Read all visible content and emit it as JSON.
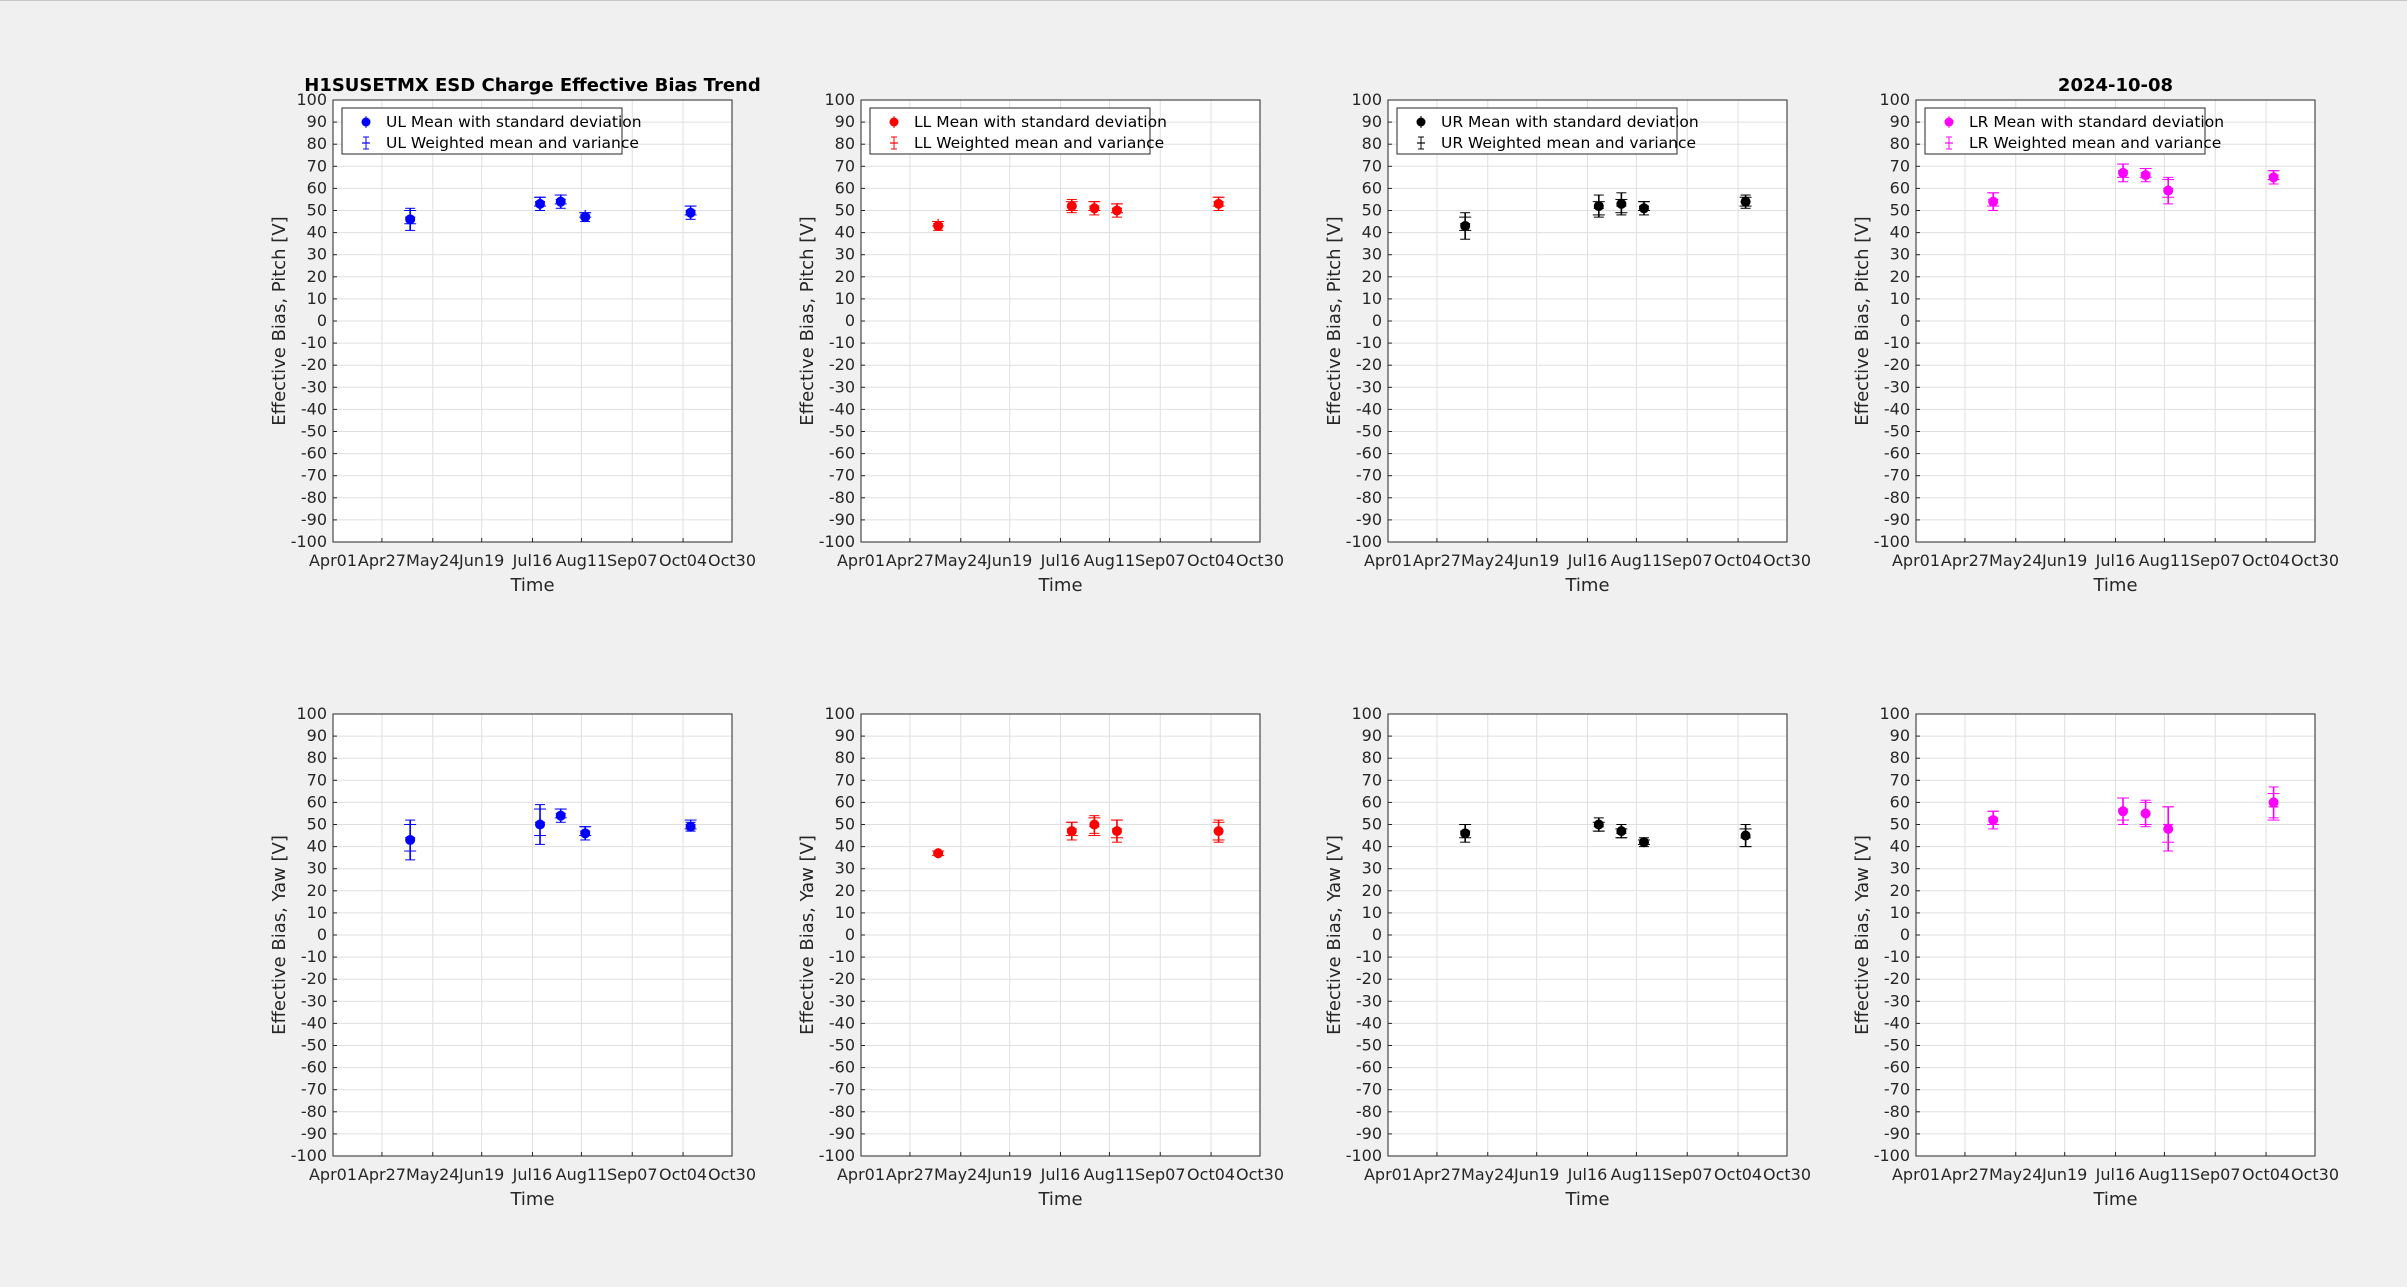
{
  "figure": {
    "title": "H1SUSETMX ESD Charge Effective Bias Trend",
    "date": "2024-10-08"
  },
  "chart_data": [
    {
      "type": "scatter",
      "quadrant": "UL",
      "color": "#0000ff",
      "xlabel": "Time",
      "ylabel": "Effective Bias, Pitch [V]",
      "ylim": [
        -100,
        100
      ],
      "y_ticks": [
        -100,
        -90,
        -80,
        -70,
        -60,
        -50,
        -40,
        -30,
        -20,
        -10,
        0,
        10,
        20,
        30,
        40,
        50,
        60,
        70,
        80,
        90,
        100
      ],
      "x_ticks": [
        "Apr01",
        "Apr27",
        "May24",
        "Jun19",
        "Jul16",
        "Aug11",
        "Sep07",
        "Oct04",
        "Oct30"
      ],
      "grid": true,
      "legend_position": "top-left",
      "series": [
        {
          "name": "UL Mean with standard deviation",
          "marker": "filled-circle",
          "x": [
            "May12",
            "Jul20",
            "Jul31",
            "Aug13",
            "Oct08"
          ],
          "y": [
            46,
            53,
            54,
            47,
            49
          ],
          "err": [
            5,
            3,
            3,
            2,
            3
          ]
        },
        {
          "name": "UL Weighted mean and variance",
          "marker": "plus",
          "x": [
            "May12",
            "Jul20",
            "Jul31",
            "Aug13",
            "Oct08"
          ],
          "y": [
            47,
            54,
            55,
            48,
            50
          ],
          "err": [
            3,
            2,
            2,
            1,
            2
          ]
        }
      ]
    },
    {
      "type": "scatter",
      "quadrant": "LL",
      "color": "#ff0000",
      "xlabel": "Time",
      "ylabel": "Effective Bias, Pitch [V]",
      "ylim": [
        -100,
        100
      ],
      "y_ticks": [
        -100,
        -90,
        -80,
        -70,
        -60,
        -50,
        -40,
        -30,
        -20,
        -10,
        0,
        10,
        20,
        30,
        40,
        50,
        60,
        70,
        80,
        90,
        100
      ],
      "x_ticks": [
        "Apr01",
        "Apr27",
        "May24",
        "Jun19",
        "Jul16",
        "Aug11",
        "Sep07",
        "Oct04",
        "Oct30"
      ],
      "grid": true,
      "legend_position": "top-left",
      "series": [
        {
          "name": "LL Mean with standard deviation",
          "marker": "filled-circle",
          "x": [
            "May12",
            "Jul22",
            "Aug03",
            "Aug15",
            "Oct08"
          ],
          "y": [
            43,
            52,
            51,
            50,
            53
          ],
          "err": [
            2,
            3,
            3,
            3,
            3
          ]
        },
        {
          "name": "LL Weighted mean and variance",
          "marker": "plus",
          "x": [
            "May12",
            "Jul22",
            "Aug03",
            "Aug15",
            "Oct08"
          ],
          "y": [
            44,
            52,
            52,
            51,
            54
          ],
          "err": [
            1,
            2,
            2,
            2,
            2
          ]
        }
      ]
    },
    {
      "type": "scatter",
      "quadrant": "UR",
      "color": "#000000",
      "xlabel": "Time",
      "ylabel": "Effective Bias, Pitch [V]",
      "ylim": [
        -100,
        100
      ],
      "y_ticks": [
        -100,
        -90,
        -80,
        -70,
        -60,
        -50,
        -40,
        -30,
        -20,
        -10,
        0,
        10,
        20,
        30,
        40,
        50,
        60,
        70,
        80,
        90,
        100
      ],
      "x_ticks": [
        "Apr01",
        "Apr27",
        "May24",
        "Jun19",
        "Jul16",
        "Aug11",
        "Sep07",
        "Oct04",
        "Oct30"
      ],
      "grid": true,
      "legend_position": "top-left",
      "series": [
        {
          "name": "UR Mean with standard deviation",
          "marker": "filled-circle",
          "x": [
            "May12",
            "Jul22",
            "Aug03",
            "Aug15",
            "Oct08"
          ],
          "y": [
            43,
            52,
            53,
            51,
            54
          ],
          "err": [
            6,
            5,
            5,
            3,
            3
          ]
        },
        {
          "name": "UR Weighted mean and variance",
          "marker": "plus",
          "x": [
            "May12",
            "Jul22",
            "Aug03",
            "Aug15",
            "Oct08"
          ],
          "y": [
            44,
            51,
            52,
            52,
            54
          ],
          "err": [
            3,
            3,
            3,
            2,
            2
          ]
        }
      ]
    },
    {
      "type": "scatter",
      "quadrant": "LR",
      "color": "#ff00ff",
      "xlabel": "Time",
      "ylabel": "Effective Bias, Pitch [V]",
      "ylim": [
        -100,
        100
      ],
      "y_ticks": [
        -100,
        -90,
        -80,
        -70,
        -60,
        -50,
        -40,
        -30,
        -20,
        -10,
        0,
        10,
        20,
        30,
        40,
        50,
        60,
        70,
        80,
        90,
        100
      ],
      "x_ticks": [
        "Apr01",
        "Apr27",
        "May24",
        "Jun19",
        "Jul16",
        "Aug11",
        "Sep07",
        "Oct04",
        "Oct30"
      ],
      "grid": true,
      "legend_position": "top-left",
      "series": [
        {
          "name": "LR Mean with standard deviation",
          "marker": "filled-circle",
          "x": [
            "May12",
            "Jul20",
            "Aug01",
            "Aug13",
            "Oct08"
          ],
          "y": [
            54,
            67,
            66,
            59,
            65
          ],
          "err": [
            4,
            4,
            3,
            6,
            3
          ]
        },
        {
          "name": "LR Weighted mean and variance",
          "marker": "plus",
          "x": [
            "May12",
            "Jul20",
            "Aug01",
            "Aug13",
            "Oct08"
          ],
          "y": [
            55,
            68,
            67,
            60,
            66
          ],
          "err": [
            3,
            3,
            2,
            4,
            2
          ]
        }
      ]
    },
    {
      "type": "scatter",
      "quadrant": "UL",
      "color": "#0000ff",
      "xlabel": "Time",
      "ylabel": "Effective Bias, Yaw [V]",
      "ylim": [
        -100,
        100
      ],
      "y_ticks": [
        -100,
        -90,
        -80,
        -70,
        -60,
        -50,
        -40,
        -30,
        -20,
        -10,
        0,
        10,
        20,
        30,
        40,
        50,
        60,
        70,
        80,
        90,
        100
      ],
      "x_ticks": [
        "Apr01",
        "Apr27",
        "May24",
        "Jun19",
        "Jul16",
        "Aug11",
        "Sep07",
        "Oct04",
        "Oct30"
      ],
      "grid": true,
      "series": [
        {
          "name": "UL Mean with standard deviation",
          "marker": "filled-circle",
          "x": [
            "May12",
            "Jul20",
            "Jul31",
            "Aug13",
            "Oct08"
          ],
          "y": [
            43,
            50,
            54,
            46,
            49
          ],
          "err": [
            9,
            9,
            3,
            3,
            2
          ]
        },
        {
          "name": "UL Weighted mean and variance",
          "marker": "plus",
          "x": [
            "May12",
            "Jul20",
            "Jul31",
            "Aug13",
            "Oct08"
          ],
          "y": [
            44,
            51,
            55,
            47,
            50
          ],
          "err": [
            6,
            6,
            2,
            2,
            2
          ]
        }
      ]
    },
    {
      "type": "scatter",
      "quadrant": "LL",
      "color": "#ff0000",
      "xlabel": "Time",
      "ylabel": "Effective Bias, Yaw [V]",
      "ylim": [
        -100,
        100
      ],
      "y_ticks": [
        -100,
        -90,
        -80,
        -70,
        -60,
        -50,
        -40,
        -30,
        -20,
        -10,
        0,
        10,
        20,
        30,
        40,
        50,
        60,
        70,
        80,
        90,
        100
      ],
      "x_ticks": [
        "Apr01",
        "Apr27",
        "May24",
        "Jun19",
        "Jul16",
        "Aug11",
        "Sep07",
        "Oct04",
        "Oct30"
      ],
      "grid": true,
      "series": [
        {
          "name": "LL Mean with standard deviation",
          "marker": "filled-circle",
          "x": [
            "May12",
            "Jul22",
            "Aug03",
            "Aug15",
            "Oct08"
          ],
          "y": [
            37,
            47,
            50,
            47,
            47
          ],
          "err": [
            1,
            4,
            4,
            5,
            5
          ]
        },
        {
          "name": "LL Weighted mean and variance",
          "marker": "plus",
          "x": [
            "May12",
            "Jul22",
            "Aug03",
            "Aug15",
            "Oct08"
          ],
          "y": [
            37,
            48,
            49,
            48,
            47
          ],
          "err": [
            1,
            3,
            4,
            4,
            4
          ]
        }
      ]
    },
    {
      "type": "scatter",
      "quadrant": "UR",
      "color": "#000000",
      "xlabel": "Time",
      "ylabel": "Effective Bias, Yaw [V]",
      "ylim": [
        -100,
        100
      ],
      "y_ticks": [
        -100,
        -90,
        -80,
        -70,
        -60,
        -50,
        -40,
        -30,
        -20,
        -10,
        0,
        10,
        20,
        30,
        40,
        50,
        60,
        70,
        80,
        90,
        100
      ],
      "x_ticks": [
        "Apr01",
        "Apr27",
        "May24",
        "Jun19",
        "Jul16",
        "Aug11",
        "Sep07",
        "Oct04",
        "Oct30"
      ],
      "grid": true,
      "series": [
        {
          "name": "UR Mean with standard deviation",
          "marker": "filled-circle",
          "x": [
            "May12",
            "Jul22",
            "Aug03",
            "Aug15",
            "Oct08"
          ],
          "y": [
            46,
            50,
            47,
            42,
            45
          ],
          "err": [
            4,
            3,
            3,
            2,
            5
          ]
        },
        {
          "name": "UR Weighted mean and variance",
          "marker": "plus",
          "x": [
            "May12",
            "Jul22",
            "Aug03",
            "Aug15",
            "Oct08"
          ],
          "y": [
            47,
            49,
            46,
            42,
            44
          ],
          "err": [
            3,
            2,
            2,
            1,
            4
          ]
        }
      ]
    },
    {
      "type": "scatter",
      "quadrant": "LR",
      "color": "#ff00ff",
      "xlabel": "Time",
      "ylabel": "Effective Bias, Yaw [V]",
      "ylim": [
        -100,
        100
      ],
      "y_ticks": [
        -100,
        -90,
        -80,
        -70,
        -60,
        -50,
        -40,
        -30,
        -20,
        -10,
        0,
        10,
        20,
        30,
        40,
        50,
        60,
        70,
        80,
        90,
        100
      ],
      "x_ticks": [
        "Apr01",
        "Apr27",
        "May24",
        "Jun19",
        "Jul16",
        "Aug11",
        "Sep07",
        "Oct04",
        "Oct30"
      ],
      "grid": true,
      "series": [
        {
          "name": "LR Mean with standard deviation",
          "marker": "filled-circle",
          "x": [
            "May12",
            "Jul20",
            "Aug01",
            "Aug13",
            "Oct08"
          ],
          "y": [
            52,
            56,
            55,
            48,
            60
          ],
          "err": [
            4,
            6,
            6,
            10,
            7
          ]
        },
        {
          "name": "LR Weighted mean and variance",
          "marker": "plus",
          "x": [
            "May12",
            "Jul20",
            "Aug01",
            "Aug13",
            "Oct08"
          ],
          "y": [
            53,
            57,
            55,
            50,
            58
          ],
          "err": [
            3,
            5,
            5,
            8,
            6
          ]
        }
      ]
    }
  ]
}
